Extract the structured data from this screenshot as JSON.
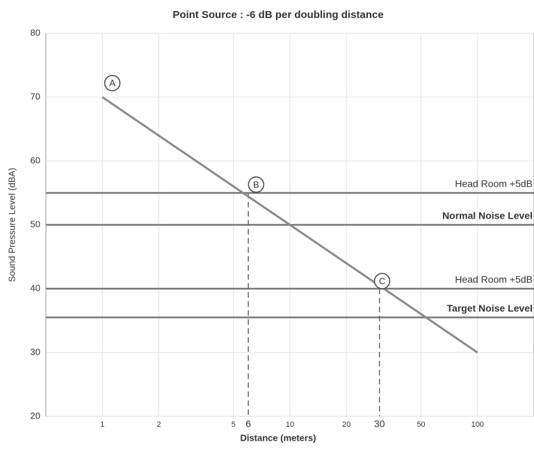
{
  "chart_data": {
    "type": "line",
    "title": "Point Source : -6 dB per doubling distance",
    "xlabel": "Distance (meters)",
    "ylabel": "Sound Pressure Level (dBA)",
    "xscale": "log",
    "xlim": [
      0.5,
      200
    ],
    "ylim": [
      20,
      80
    ],
    "xticks": [
      1,
      2,
      5,
      10,
      20,
      50,
      100
    ],
    "yticks": [
      20,
      30,
      40,
      50,
      60,
      70,
      80
    ],
    "grid": true,
    "series": [
      {
        "color": "#8a8a8a",
        "x": [
          1,
          100
        ],
        "values": [
          70,
          30
        ]
      }
    ],
    "reference_lines": [
      {
        "value": 55,
        "label": "Head Room +5dB",
        "bold": false
      },
      {
        "value": 50,
        "label": "Normal Noise Level",
        "bold": true
      },
      {
        "value": 40,
        "label": "Head Room +5dB",
        "bold": false
      },
      {
        "value": 35.5,
        "label": "Target Noise Level",
        "bold": true
      }
    ],
    "markers": [
      {
        "label": "A",
        "x": 1.13,
        "y": 72.2
      },
      {
        "label": "B",
        "x": 6.6,
        "y": 56.3
      },
      {
        "label": "C",
        "x": 31,
        "y": 41.2
      }
    ],
    "drop_lines": [
      {
        "x": 6,
        "y": 55
      },
      {
        "x": 30,
        "y": 40
      }
    ]
  }
}
